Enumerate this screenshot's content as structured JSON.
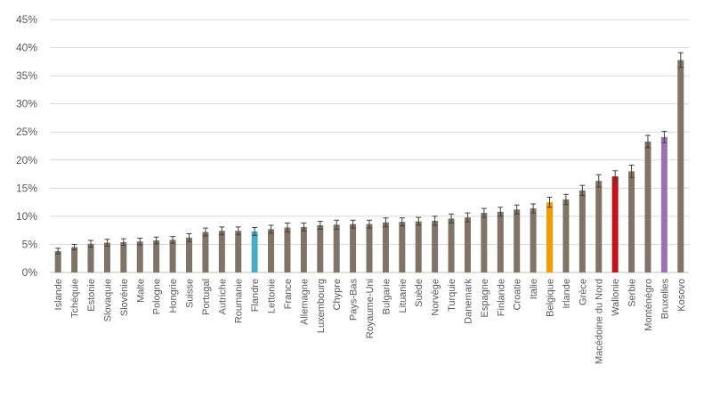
{
  "chart_data": {
    "type": "bar",
    "title": "",
    "xlabel": "",
    "ylabel": "",
    "ylim": [
      0,
      45
    ],
    "yticks": [
      "0%",
      "5%",
      "10%",
      "15%",
      "20%",
      "25%",
      "30%",
      "35%",
      "40%",
      "45%"
    ],
    "grid": true,
    "categories": [
      "Islande",
      "Tchéquie",
      "Estonie",
      "Slovaquie",
      "Slovénie",
      "Malte",
      "Pologne",
      "Hongrie",
      "Suisse",
      "Portugal",
      "Autriche",
      "Roumanie",
      "Flandre",
      "Lettonie",
      "France",
      "Allemagne",
      "Luxembourg",
      "Chypre",
      "Pays-Bas",
      "Royaume-Uni",
      "Bulgarie",
      "Lituanie",
      "Suède",
      "Norvège",
      "Turquie",
      "Danemark",
      "Espagne",
      "Finlande",
      "Croatie",
      "Italie",
      "Belgique",
      "Irlande",
      "Grèce",
      "Macédoine du Nord",
      "Wallonie",
      "Serbie",
      "Monténégro",
      "Bruxelles",
      "Kosovo"
    ],
    "values": [
      3.8,
      4.5,
      5.1,
      5.3,
      5.4,
      5.5,
      5.7,
      5.8,
      6.2,
      7.2,
      7.4,
      7.4,
      7.3,
      7.7,
      8.0,
      8.1,
      8.4,
      8.5,
      8.6,
      8.6,
      8.9,
      9.0,
      9.1,
      9.2,
      9.6,
      9.8,
      10.6,
      10.8,
      11.2,
      11.4,
      12.5,
      13.0,
      14.6,
      16.3,
      17.1,
      18.0,
      23.3,
      24.1,
      37.8
    ],
    "errors": [
      0.5,
      0.5,
      0.6,
      0.6,
      0.6,
      0.6,
      0.6,
      0.6,
      0.7,
      0.7,
      0.7,
      0.7,
      0.7,
      0.7,
      0.8,
      0.7,
      0.7,
      0.8,
      0.7,
      0.7,
      0.8,
      0.7,
      0.7,
      0.8,
      0.8,
      0.8,
      0.8,
      0.8,
      0.8,
      0.8,
      0.9,
      0.9,
      0.9,
      1.1,
      1.0,
      1.1,
      1.1,
      1.0,
      1.3
    ],
    "colors": {
      "default": "#7f7466",
      "Flandre": "#4bacc6",
      "Belgique": "#f59b00",
      "Wallonie": "#c0141a",
      "Bruxelles": "#9b72b0"
    },
    "error_bar_color": "#404040"
  }
}
